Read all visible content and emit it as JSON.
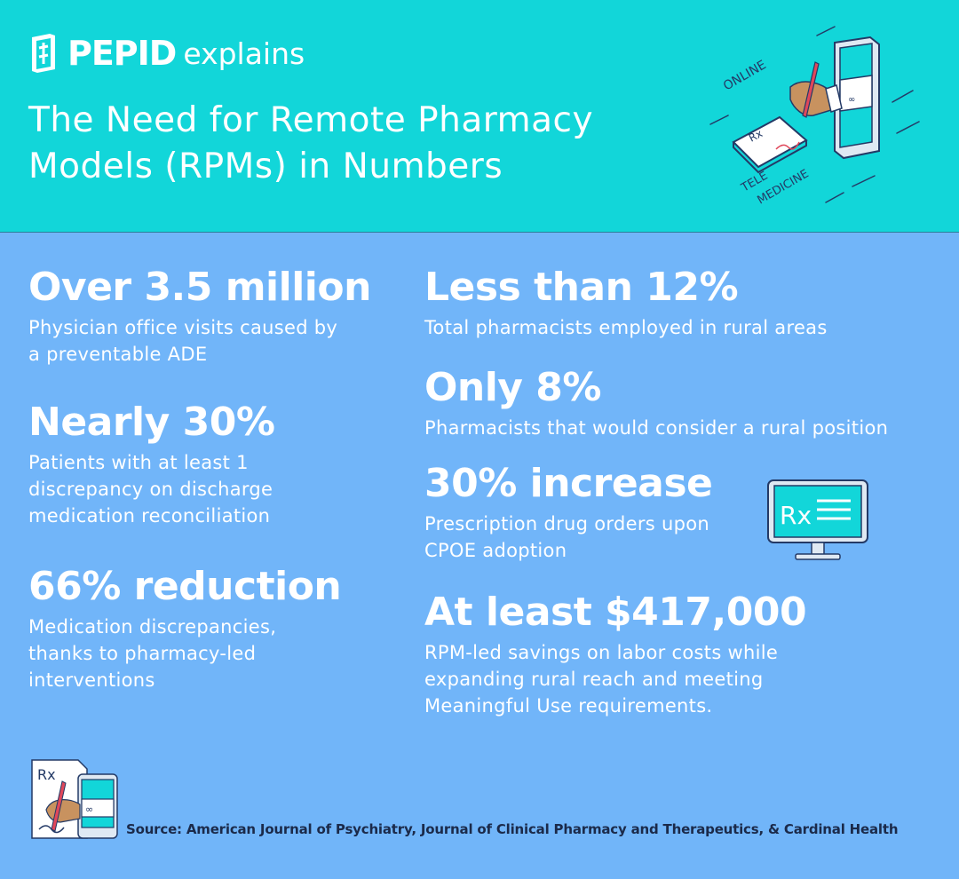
{
  "header": {
    "brand_name": "PEPID",
    "brand_suffix": "explains",
    "title_line1": "The Need for Remote Pharmacy",
    "title_line2": "Models (RPMs) in Numbers",
    "illustration_labels": {
      "online": "ONLINE",
      "tele": "TELE",
      "medicine": "MEDICINE",
      "rx": "Rx"
    }
  },
  "stats": {
    "office_visits": {
      "value": "Over 3.5 million",
      "description": "Physician office visits caused by a preventable ADE"
    },
    "discrepancy": {
      "value": "Nearly 30%",
      "description": "Patients with at least 1 discrepancy on discharge medication reconciliation"
    },
    "reduction": {
      "value": "66% reduction",
      "description": "Medication discrepancies, thanks to pharmacy-led interventions"
    },
    "rural_employed": {
      "value": "Less than 12%",
      "description": "Total pharmacists employed in rural areas"
    },
    "rural_consider": {
      "value": "Only 8%",
      "description": "Pharmacists that would consider a rural position"
    },
    "orders_increase": {
      "value": "30% increase",
      "description": "Prescription drug orders upon CPOE adoption"
    },
    "savings": {
      "value": "At least $417,000",
      "description": "RPM-led savings on labor costs while expanding rural reach and meeting Meaningful Use requirements."
    }
  },
  "icons": {
    "monitor": "rx-monitor-icon",
    "brand": "pepid-logo-icon",
    "hero": "telemedicine-illustration",
    "source": "prescription-phone-icon",
    "monitor_rx": "Rx",
    "source_rx": "Rx"
  },
  "source": {
    "text": "Source:  American Journal of Psychiatry, Journal of Clinical Pharmacy and Therapeutics, & Cardinal Health"
  },
  "colors": {
    "header_bg": "#12d6d9",
    "main_bg": "#71b5f9",
    "text": "#ffffff",
    "source_text": "#1b2a4a",
    "outline": "#243a66"
  }
}
